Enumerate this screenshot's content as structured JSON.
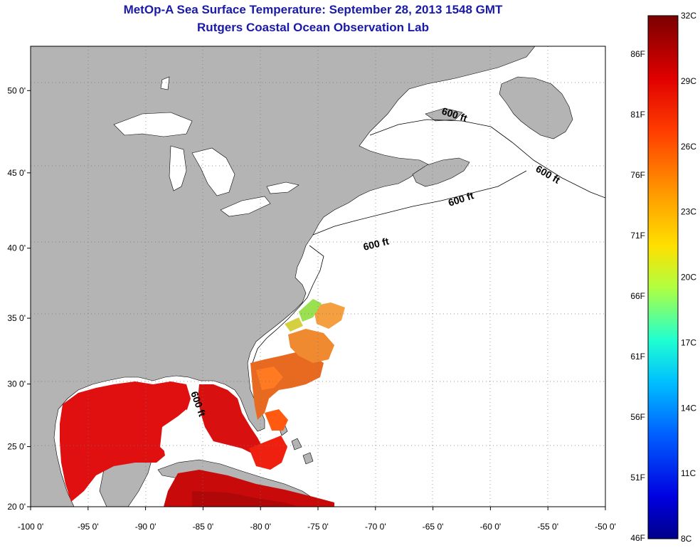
{
  "title": "MetOp-A Sea Surface Temperature:  September 28, 2013 1548 GMT",
  "subtitle": "Rutgers Coastal Ocean Observation Lab",
  "map": {
    "extent": {
      "lon": [
        -100,
        -50
      ],
      "lat": [
        20,
        52.5
      ]
    },
    "lon_ticks": [
      "-100 0'",
      "-95 0'",
      "-90 0'",
      "-85 0'",
      "-80 0'",
      "-75 0'",
      "-70 0'",
      "-65 0'",
      "-60 0'",
      "-55 0'",
      "-50 0'"
    ],
    "lat_ticks": [
      "20 0'",
      "25 0'",
      "30 0'",
      "35 0'",
      "40 0'",
      "45 0'",
      "50 0'"
    ],
    "land_color": "#b4b4b4",
    "contour_labels": [
      "600 ft",
      "600 ft",
      "600 ft",
      "600 ft",
      "600 ft"
    ]
  },
  "colorbar": {
    "celsius": [
      "32C",
      "29C",
      "26C",
      "23C",
      "20C",
      "17C",
      "14C",
      "11C",
      "8C"
    ],
    "fahrenheit": [
      "86F",
      "81F",
      "76F",
      "71F",
      "66F",
      "61F",
      "56F",
      "51F",
      "46F"
    ],
    "colors": [
      "#800000",
      "#ff0000",
      "#ff7f00",
      "#ffff00",
      "#7fff7f",
      "#00ffff",
      "#007fff",
      "#0000ff",
      "#00008f"
    ]
  }
}
